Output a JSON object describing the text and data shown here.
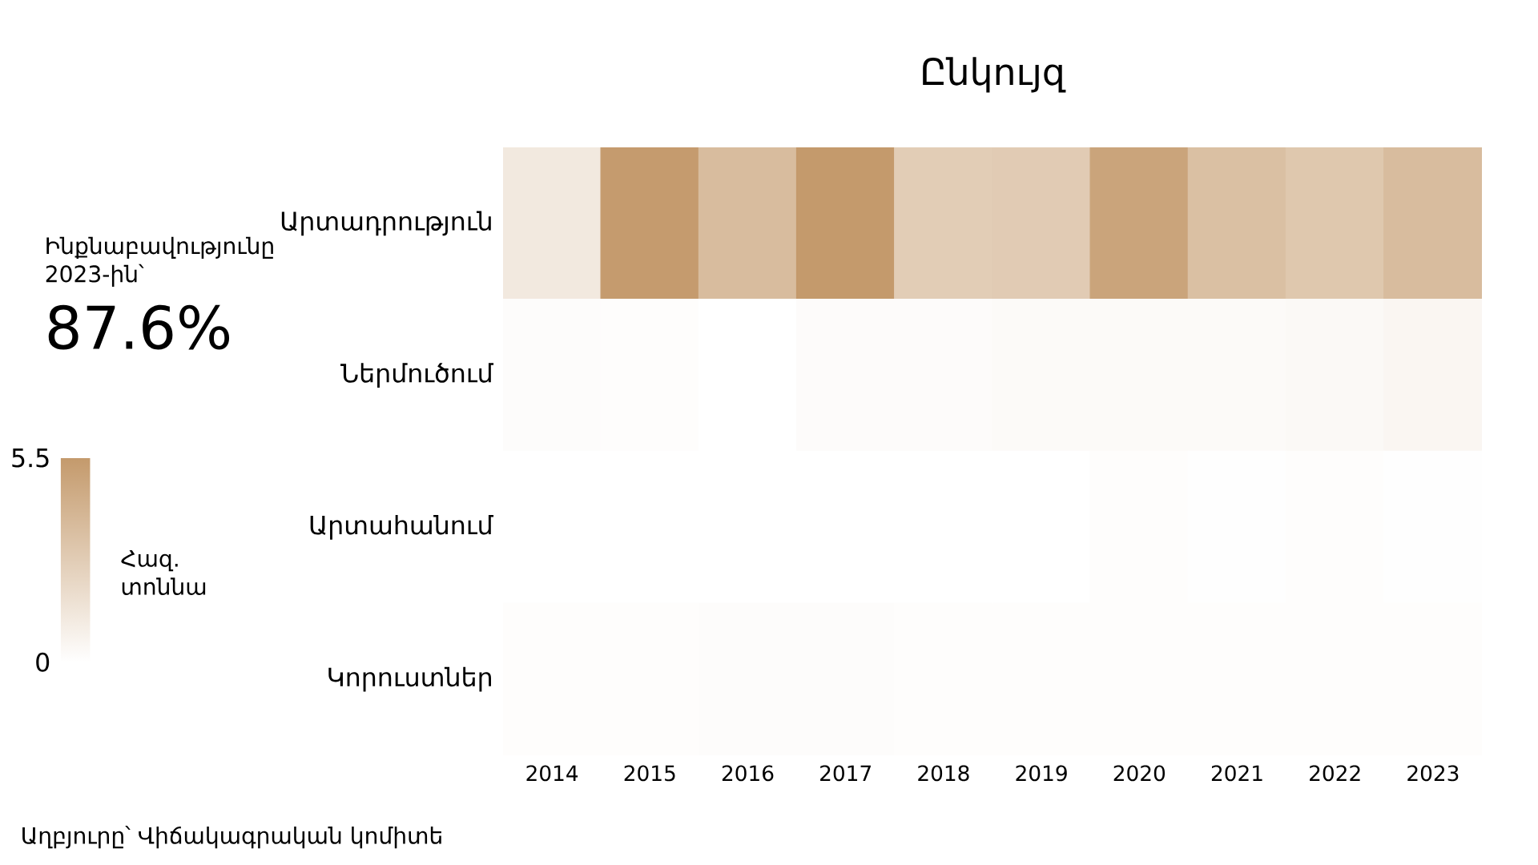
{
  "chart_data": {
    "type": "heatmap",
    "title": "Ընկույզ",
    "categories": [
      "2014",
      "2015",
      "2016",
      "2017",
      "2018",
      "2019",
      "2020",
      "2021",
      "2022",
      "2023"
    ],
    "y_categories": [
      "Արտադրություն",
      "Ներմուծում",
      "Արտահանում",
      "Կորուստներ"
    ],
    "cells": [
      [
        1.2,
        5.4,
        3.6,
        5.5,
        2.7,
        2.8,
        4.9,
        3.4,
        3.0,
        3.6
      ],
      [
        0.15,
        0.1,
        0.0,
        0.2,
        0.2,
        0.25,
        0.25,
        0.25,
        0.35,
        0.5
      ],
      [
        0.0,
        0.0,
        0.0,
        0.0,
        0.0,
        0.0,
        0.1,
        0.05,
        0.1,
        0.05
      ],
      [
        0.1,
        0.1,
        0.15,
        0.15,
        0.1,
        0.1,
        0.1,
        0.1,
        0.1,
        0.1
      ]
    ],
    "color": "#c49a6c",
    "clim": [
      0,
      5.5
    ],
    "cticks": [
      0,
      5.5
    ],
    "clabel": "Հազ. տոննա",
    "annotations": [
      "Ինքնաբավությունը 2023-ին՝",
      "87.6%",
      "Աղբյուրը՝ Վիճակագրական կոմիտե"
    ]
  }
}
